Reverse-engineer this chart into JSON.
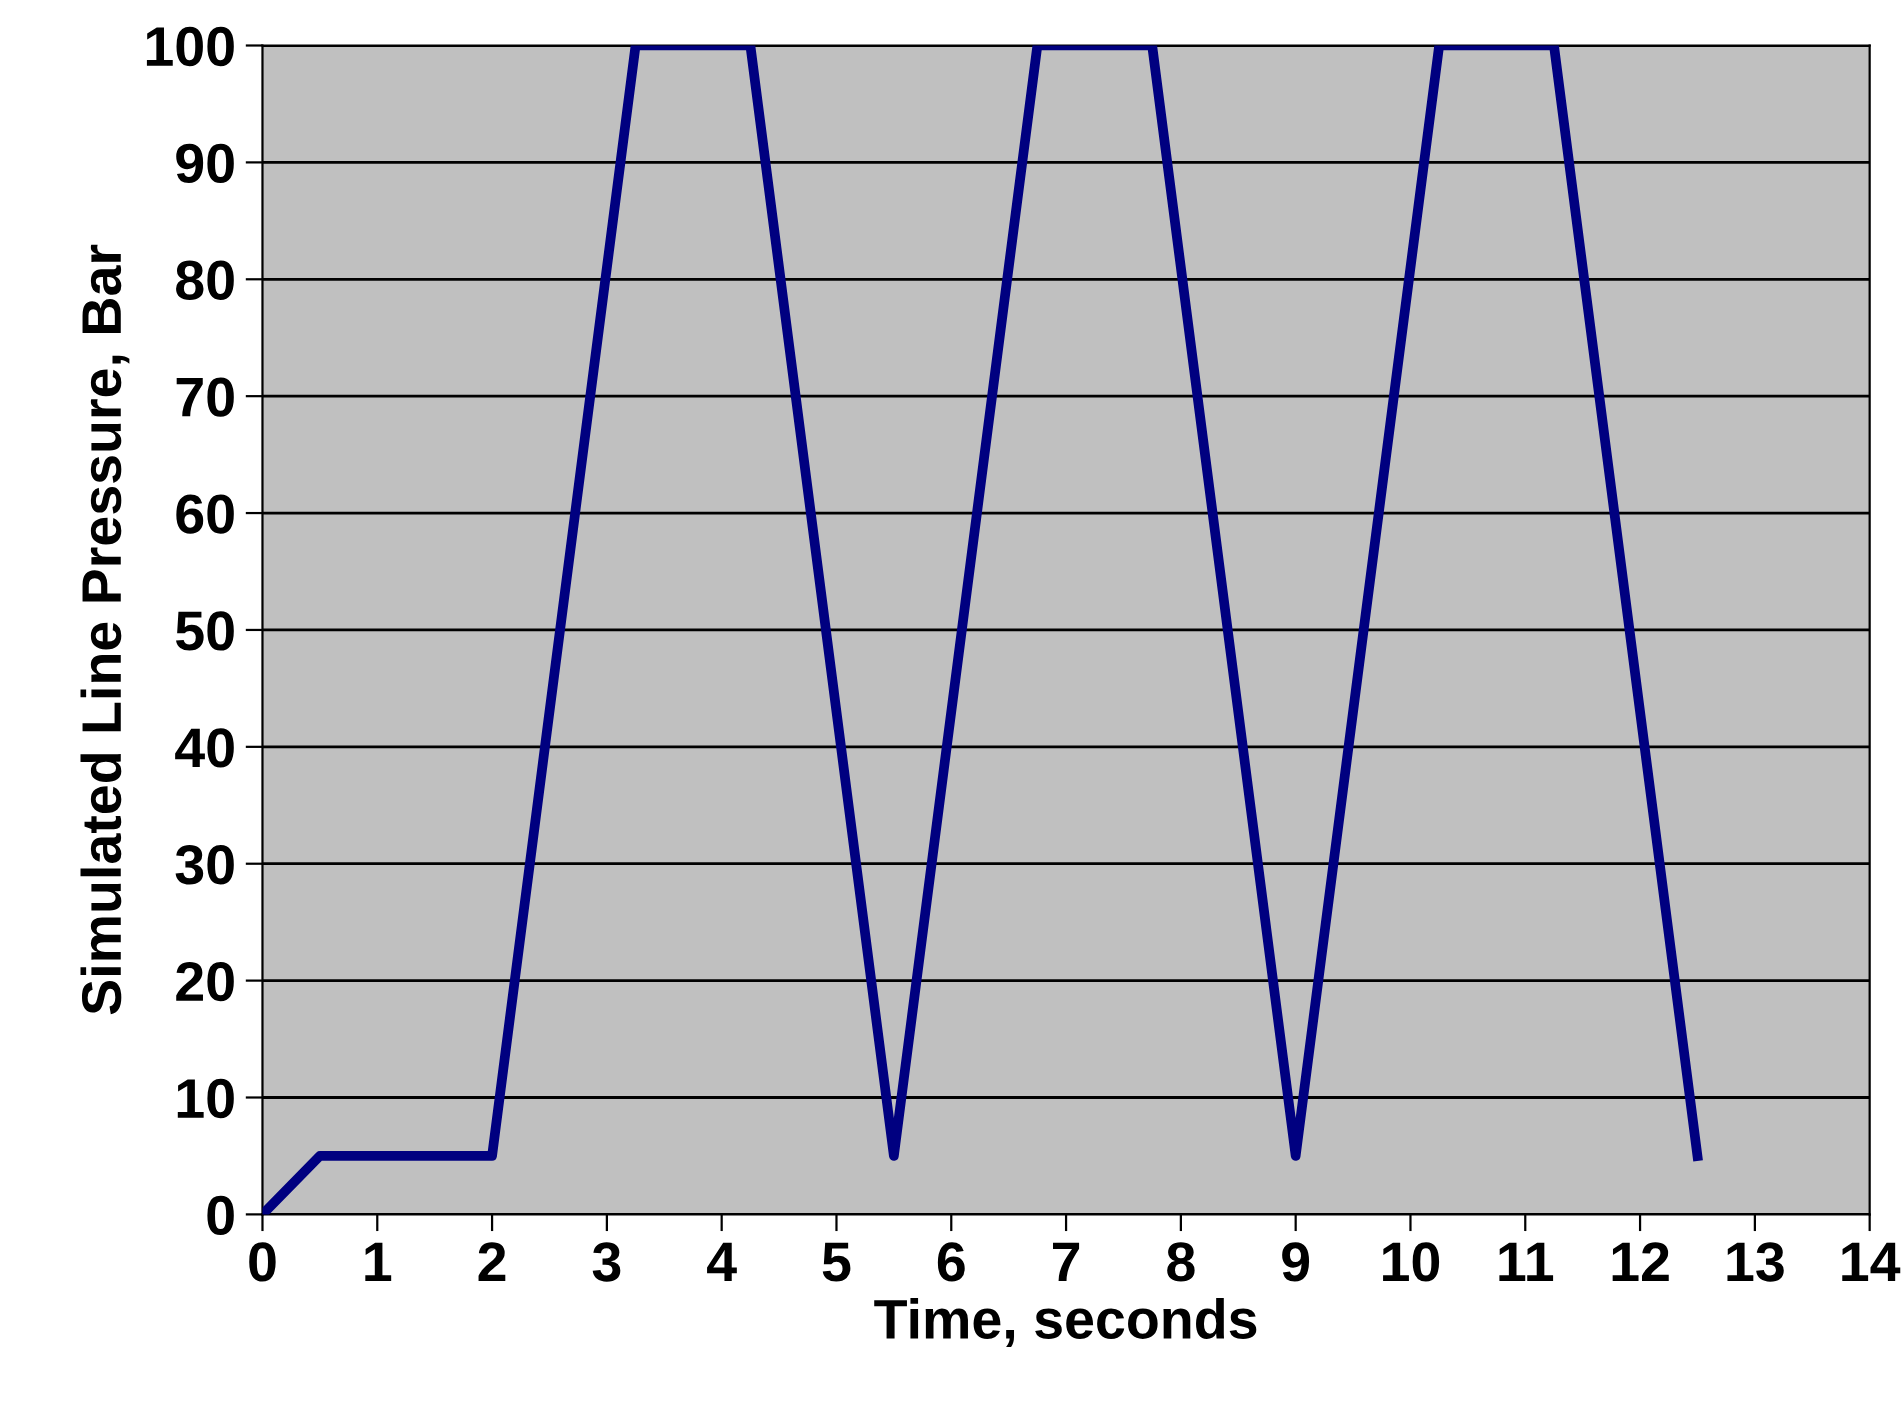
{
  "chart_data": {
    "type": "line",
    "xlabel": "Time, seconds",
    "ylabel": "Simulated Line Pressure, Bar",
    "x": [
      0,
      0.5,
      2,
      3.25,
      4.25,
      5.5,
      6.75,
      7.75,
      9,
      10.25,
      11.25,
      12.5
    ],
    "series": [
      {
        "color": "#000080",
        "values": [
          0,
          5,
          5,
          100,
          100,
          5,
          100,
          100,
          5,
          100,
          100,
          5
        ]
      }
    ],
    "xlim": [
      0,
      14
    ],
    "xticks": [
      0,
      1,
      2,
      3,
      4,
      5,
      6,
      7,
      8,
      9,
      10,
      11,
      12,
      13,
      14
    ],
    "ylim": [
      0,
      100
    ],
    "yticks": [
      0,
      10,
      20,
      30,
      40,
      50,
      60,
      70,
      80,
      90,
      100
    ],
    "grid": "y",
    "legend": false,
    "marker": "none",
    "line_style": "solid"
  }
}
